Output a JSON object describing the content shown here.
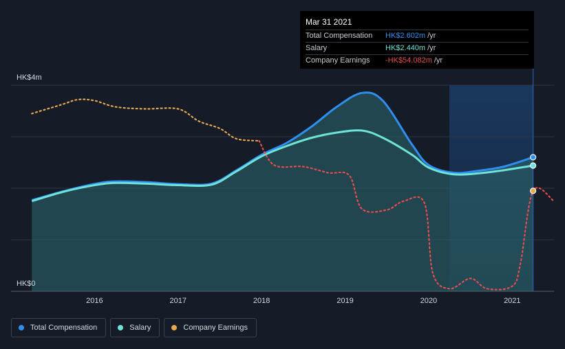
{
  "chart_data": {
    "type": "area",
    "title": "",
    "xlabel": "",
    "ylabel": "",
    "y_unit_labels": {
      "top": "HK$4m",
      "bottom": "HK$0"
    },
    "ylim": [
      0,
      4
    ],
    "xlim": [
      2015.0,
      2021.5
    ],
    "x_ticks": [
      "2016",
      "2017",
      "2018",
      "2019",
      "2020",
      "2021"
    ],
    "grid": true,
    "legend_position": "bottom-left",
    "series": [
      {
        "name": "Total Compensation",
        "color": "#2f8ef0",
        "style": "solid",
        "points": [
          [
            2015.25,
            1.77
          ],
          [
            2015.6,
            1.93
          ],
          [
            2015.9,
            2.05
          ],
          [
            2016.2,
            2.13
          ],
          [
            2016.6,
            2.12
          ],
          [
            2017.0,
            2.08
          ],
          [
            2017.4,
            2.09
          ],
          [
            2017.7,
            2.35
          ],
          [
            2018.0,
            2.65
          ],
          [
            2018.3,
            2.88
          ],
          [
            2018.6,
            3.2
          ],
          [
            2018.9,
            3.58
          ],
          [
            2019.2,
            3.85
          ],
          [
            2019.45,
            3.7
          ],
          [
            2019.8,
            2.85
          ],
          [
            2020.0,
            2.45
          ],
          [
            2020.3,
            2.3
          ],
          [
            2020.6,
            2.34
          ],
          [
            2020.9,
            2.42
          ],
          [
            2021.25,
            2.602
          ]
        ]
      },
      {
        "name": "Salary",
        "color": "#6ee3d8",
        "style": "solid",
        "points": [
          [
            2015.25,
            1.75
          ],
          [
            2015.6,
            1.92
          ],
          [
            2015.9,
            2.03
          ],
          [
            2016.2,
            2.1
          ],
          [
            2016.6,
            2.09
          ],
          [
            2017.0,
            2.06
          ],
          [
            2017.4,
            2.07
          ],
          [
            2017.7,
            2.33
          ],
          [
            2018.0,
            2.62
          ],
          [
            2018.3,
            2.82
          ],
          [
            2018.6,
            2.98
          ],
          [
            2018.9,
            3.08
          ],
          [
            2019.2,
            3.12
          ],
          [
            2019.45,
            2.98
          ],
          [
            2019.8,
            2.65
          ],
          [
            2020.0,
            2.4
          ],
          [
            2020.3,
            2.27
          ],
          [
            2020.6,
            2.29
          ],
          [
            2020.9,
            2.35
          ],
          [
            2021.25,
            2.44
          ]
        ]
      },
      {
        "name": "Company Earnings",
        "color": "#e84d4d",
        "style": "dotted",
        "earlier_color": "#e8a850",
        "points": [
          [
            2015.25,
            3.45
          ],
          [
            2015.6,
            3.62
          ],
          [
            2015.8,
            3.72
          ],
          [
            2016.0,
            3.7
          ],
          [
            2016.25,
            3.58
          ],
          [
            2016.6,
            3.54
          ],
          [
            2017.0,
            3.54
          ],
          [
            2017.25,
            3.3
          ],
          [
            2017.5,
            3.16
          ],
          [
            2017.7,
            2.96
          ],
          [
            2017.97,
            2.92
          ],
          [
            2018.15,
            2.45
          ],
          [
            2018.5,
            2.42
          ],
          [
            2018.8,
            2.3
          ],
          [
            2019.05,
            2.25
          ],
          [
            2019.2,
            1.6
          ],
          [
            2019.5,
            1.58
          ],
          [
            2019.7,
            1.75
          ],
          [
            2019.95,
            1.71
          ],
          [
            2020.05,
            0.35
          ],
          [
            2020.25,
            0.05
          ],
          [
            2020.5,
            0.25
          ],
          [
            2020.7,
            0.05
          ],
          [
            2021.0,
            0.1
          ],
          [
            2021.1,
            0.55
          ],
          [
            2021.25,
            1.95
          ],
          [
            2021.5,
            1.75
          ]
        ]
      }
    ],
    "highlight_x": 2021.25
  },
  "tooltip": {
    "date": "Mar 31 2021",
    "rows": [
      {
        "label": "Total Compensation",
        "value": "HK$2.602m",
        "unit": "/yr",
        "color": "#2f8ef0"
      },
      {
        "label": "Salary",
        "value": "HK$2.440m",
        "unit": "/yr",
        "color": "#6ee3d8"
      },
      {
        "label": "Company Earnings",
        "value": "-HK$54.082m",
        "unit": "/yr",
        "color": "#e84d4d"
      }
    ]
  },
  "legend": [
    {
      "label": "Total Compensation",
      "color": "#2f8ef0"
    },
    {
      "label": "Salary",
      "color": "#6ee3d8"
    },
    {
      "label": "Company Earnings",
      "color": "#e8a850"
    }
  ]
}
